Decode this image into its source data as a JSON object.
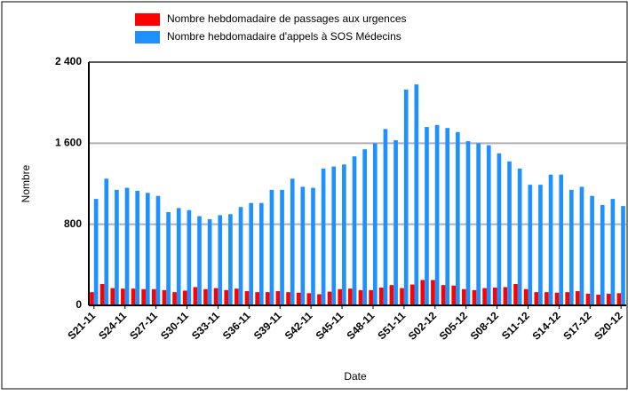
{
  "chart_data": {
    "type": "bar",
    "xlabel": "Date",
    "ylabel": "Nombre",
    "categories": [
      "S21-11",
      null,
      null,
      "S24-11",
      null,
      null,
      "S27-11",
      null,
      null,
      "S30-11",
      null,
      null,
      "S33-11",
      null,
      null,
      "S36-11",
      null,
      null,
      "S39-11",
      null,
      null,
      "S42-11",
      null,
      null,
      "S45-11",
      null,
      null,
      "S48-11",
      null,
      null,
      "S51-11",
      null,
      null,
      "S02-12",
      null,
      null,
      "S05-12",
      null,
      null,
      "S08-12",
      null,
      null,
      "S11-12",
      null,
      null,
      "S14-12",
      null,
      null,
      "S17-12",
      null,
      null,
      "S20-12"
    ],
    "series": [
      {
        "name": "Nombre hebdomadaire de passages aux urgences",
        "color": "#ff0000",
        "values": [
          130,
          210,
          170,
          165,
          165,
          160,
          160,
          150,
          130,
          145,
          180,
          160,
          170,
          150,
          165,
          140,
          130,
          130,
          140,
          130,
          125,
          120,
          110,
          135,
          160,
          165,
          150,
          150,
          175,
          200,
          170,
          205,
          250,
          250,
          200,
          195,
          160,
          150,
          170,
          175,
          180,
          210,
          160,
          130,
          130,
          125,
          130,
          140,
          115,
          105,
          115,
          120
        ]
      },
      {
        "name": "Nombre hebdomadaire d'appels à SOS Médecins",
        "color": "#1e90ff",
        "values": [
          1050,
          1250,
          1140,
          1160,
          1130,
          1110,
          1080,
          920,
          960,
          940,
          880,
          850,
          890,
          900,
          970,
          1010,
          1010,
          1140,
          1140,
          1250,
          1170,
          1160,
          1350,
          1370,
          1390,
          1470,
          1540,
          1600,
          1740,
          1630,
          2130,
          2180,
          1760,
          1780,
          1750,
          1710,
          1620,
          1600,
          1580,
          1500,
          1420,
          1350,
          1190,
          1190,
          1290,
          1290,
          1140,
          1170,
          1080,
          990,
          1050,
          980
        ]
      }
    ],
    "ylim": [
      0,
      2400
    ],
    "yticks": [
      0,
      800,
      {
        "value": 1600,
        "label": "1 600"
      },
      {
        "value": 2400,
        "label": "2 400"
      }
    ],
    "grid": true
  }
}
